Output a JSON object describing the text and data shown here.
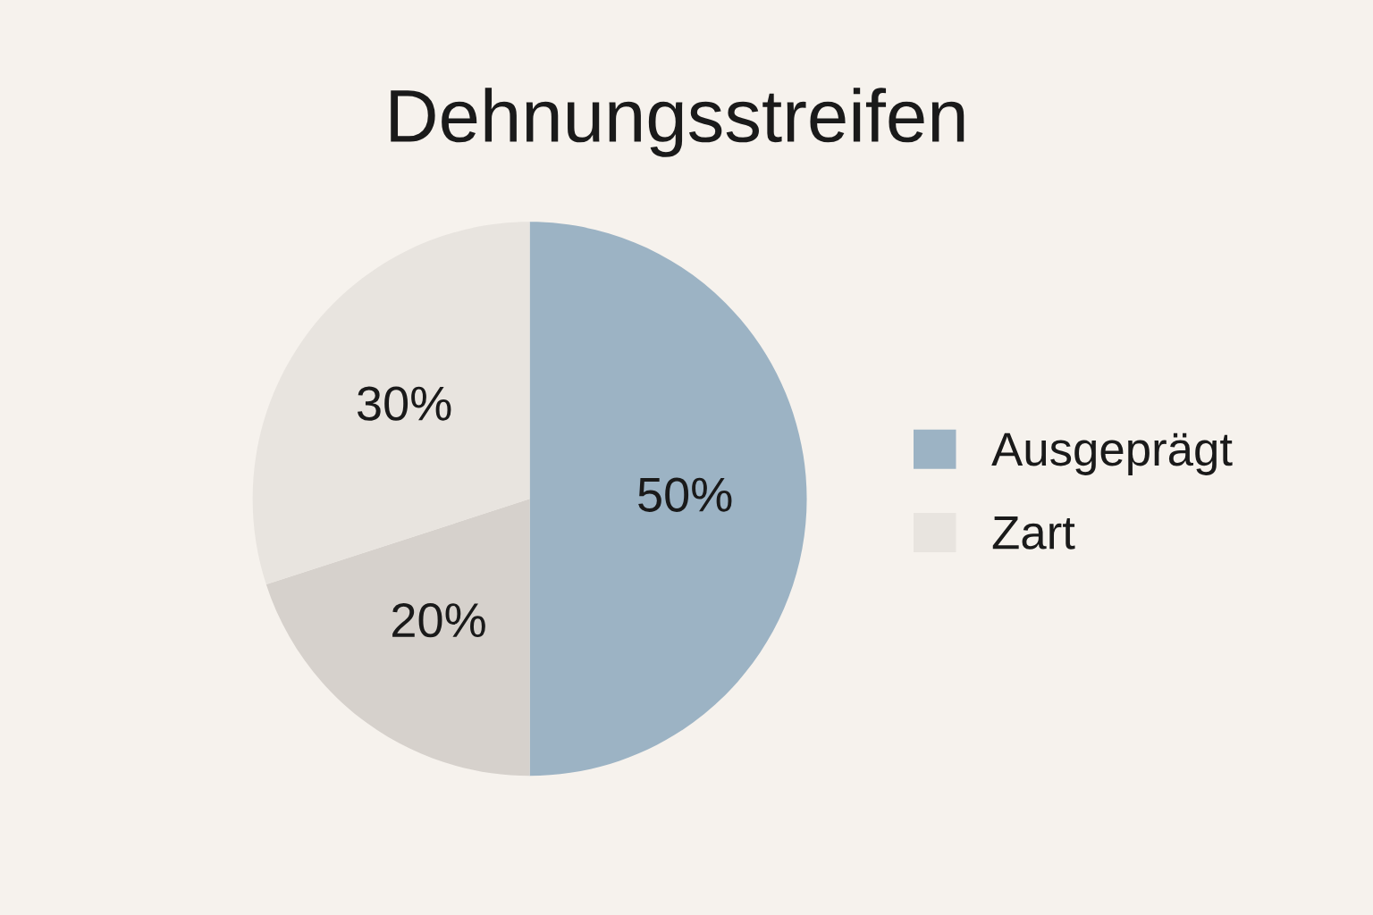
{
  "chart_data": {
    "type": "pie",
    "title": "Dehnungsstreifen",
    "categories": [
      "Ausgeprägt",
      null,
      "Zart"
    ],
    "values": [
      50,
      20,
      30
    ],
    "colors": [
      "#9cb3c4",
      "#d6d1cc",
      "#e8e4df"
    ],
    "value_labels": [
      "50%",
      "20%",
      "30%"
    ],
    "legend": "right"
  }
}
